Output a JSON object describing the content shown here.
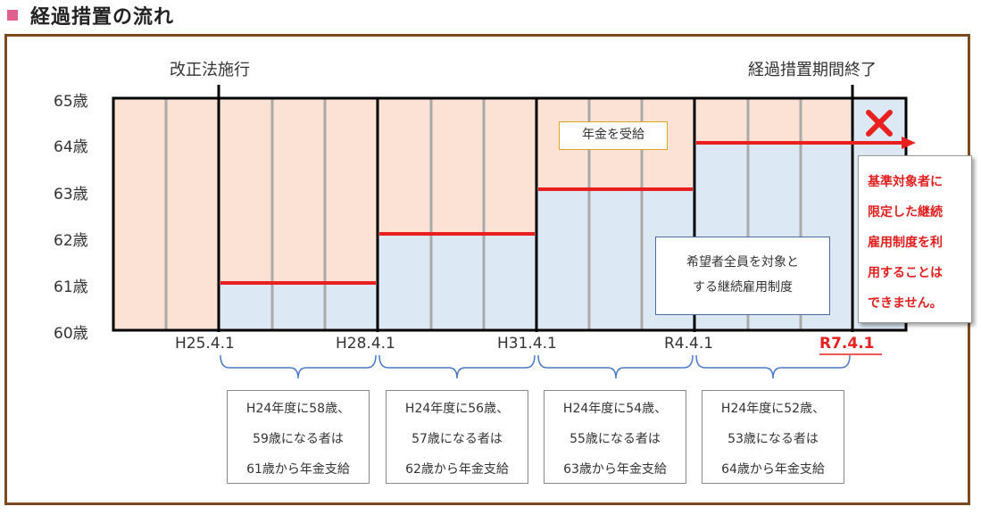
{
  "title": "経過措置の流れ",
  "top_labels": {
    "start": "改正法施行",
    "end": "経過措置期間終了"
  },
  "ages": [
    "65歳",
    "64歳",
    "63歳",
    "62歳",
    "61歳",
    "60歳"
  ],
  "dates": [
    "H25.4.1",
    "H28.4.1",
    "H31.4.1",
    "R4.4.1",
    "R7.4.1"
  ],
  "pension_label": "年金を受給",
  "hope_box": {
    "line1": "希望者全員を対象と",
    "line2": "する継続雇用制度"
  },
  "red_note": {
    "line1": "基準対象者に",
    "line2": "限定した継続",
    "line3": "雇用制度を利",
    "line4": "用することは",
    "line5": "できません。"
  },
  "periods": [
    {
      "line1": "H24年度に58歳、",
      "line2": "59歳になる者は",
      "line3": "61歳から年金支給"
    },
    {
      "line1": "H24年度に56歳、",
      "line2": "57歳になる者は",
      "line3": "62歳から年金支給"
    },
    {
      "line1": "H24年度に54歳、",
      "line2": "55歳になる者は",
      "line3": "63歳から年金支給"
    },
    {
      "line1": "H24年度に52歳、",
      "line2": "53歳になる者は",
      "line3": "64歳から年金支給"
    }
  ],
  "colors": {
    "pension": "#fbe2d4",
    "employment": "#dce8f3",
    "red": "#e82020",
    "frame": "#7b4a1e",
    "bracket": "#4a78c8"
  }
}
